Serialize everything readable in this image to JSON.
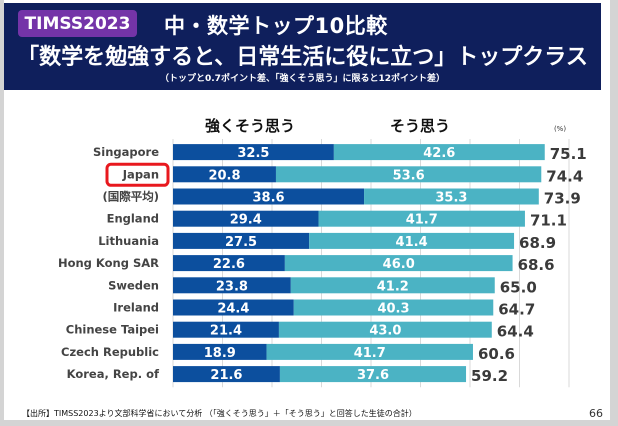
{
  "header": {
    "badge": "TIMSS2023",
    "title_line1": "中・数学トップ10比較",
    "title_line2": "「数学を勉強すると、日常生活に役に立つ」トップクラス",
    "subtitle": "（トップと0.7ポイント差、「強くそう思う」に限ると12ポイント差）"
  },
  "colors": {
    "header_bg": "#0f1f5c",
    "badge_bg": "#7434a8",
    "strongly_agree": "#0c4f9e",
    "agree": "#4bb3c4",
    "highlight_box": "#e8181e"
  },
  "chart_data": {
    "type": "bar",
    "orientation": "horizontal",
    "stacked": true,
    "title": "",
    "unit_label": "(%)",
    "categories": [
      "Singapore",
      "Japan",
      "(国際平均)",
      "England",
      "Lithuania",
      "Hong Kong SAR",
      "Sweden",
      "Ireland",
      "Chinese Taipei",
      "Czech Republic",
      "Korea, Rep. of"
    ],
    "highlighted_category": "Japan",
    "series": [
      {
        "name": "強くそう思う",
        "values": [
          32.5,
          20.8,
          38.6,
          29.4,
          27.5,
          22.6,
          23.8,
          24.4,
          21.4,
          18.9,
          21.6
        ]
      },
      {
        "name": "そう思う",
        "values": [
          42.6,
          53.6,
          35.3,
          41.7,
          41.4,
          46.0,
          41.2,
          40.3,
          43.0,
          41.7,
          37.6
        ]
      }
    ],
    "totals": [
      "75.1",
      "74.4",
      "73.9",
      "71.1",
      "68.9",
      "68.6",
      "65.0",
      "64.7",
      "64.4",
      "60.6",
      "59.2"
    ],
    "series_labels": [
      "32.5",
      "20.8",
      "38.6",
      "29.4",
      "27.5",
      "22.6",
      "23.8",
      "24.4",
      "21.4",
      "18.9",
      "21.6"
    ],
    "series2_labels": [
      "42.6",
      "53.6",
      "35.3",
      "41.7",
      "41.4",
      "46.0",
      "41.2",
      "40.3",
      "43.0",
      "41.7",
      "37.6"
    ],
    "xlim": [
      0,
      80
    ],
    "grid": true,
    "grid_step": 10,
    "legend_placement": "top"
  },
  "footer": {
    "source": "【出所】TIMSS2023より文部科学省において分析 （「強くそう思う」＋「そう思う」と回答した生徒の合計）",
    "page_number": "66"
  }
}
